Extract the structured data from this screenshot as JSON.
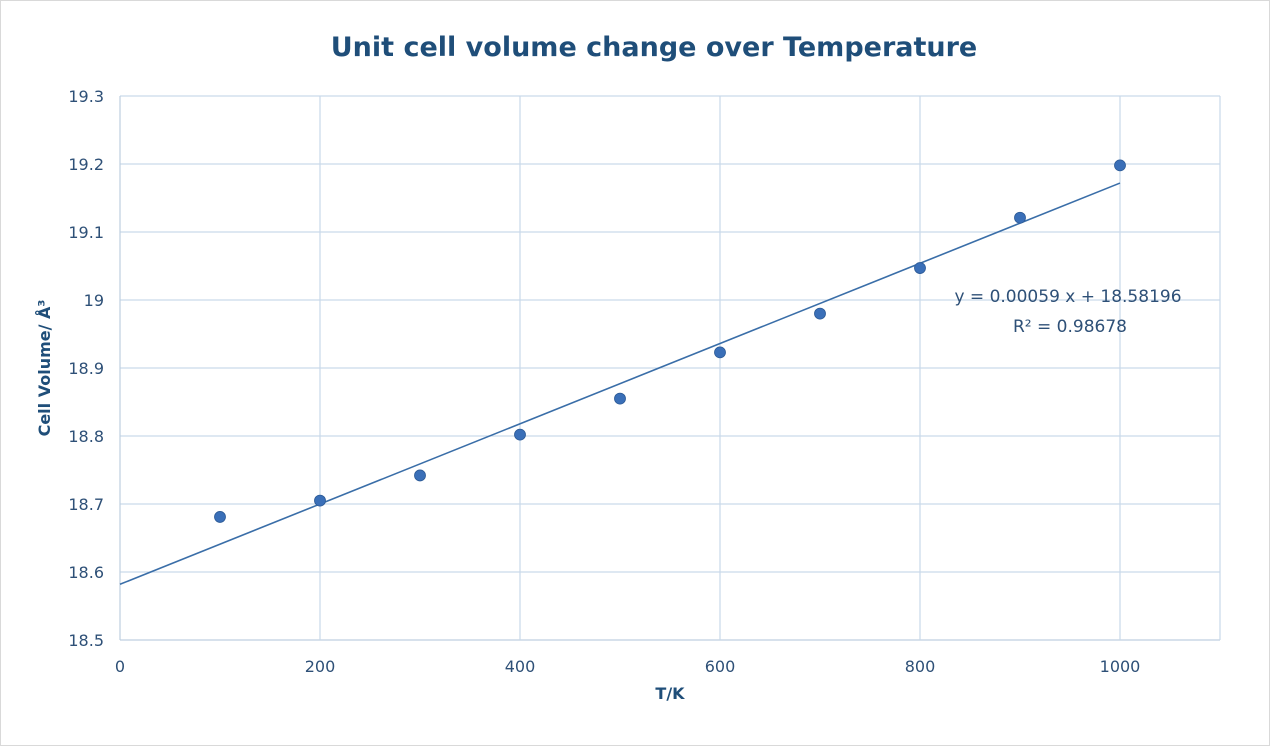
{
  "chart_data": {
    "type": "scatter",
    "title": "Unit cell volume change over Temperature",
    "xlabel": "T/K",
    "ylabel": "Cell Volume/ Å³",
    "xlim": [
      0,
      1100
    ],
    "ylim": [
      18.5,
      19.3
    ],
    "x_ticks": [
      0,
      200,
      400,
      600,
      800,
      1000
    ],
    "y_ticks": [
      18.5,
      18.6,
      18.7,
      18.8,
      18.9,
      19.0,
      19.1,
      19.2,
      19.3
    ],
    "x_tick_labels": [
      "0",
      "200",
      "400",
      "600",
      "800",
      "1000"
    ],
    "y_tick_labels": [
      "18.5",
      "18.6",
      "18.7",
      "18.8",
      "18.9",
      "19",
      "19.1",
      "19.2",
      "19.3"
    ],
    "grid": true,
    "series": [
      {
        "x": [
          100,
          200,
          300,
          400,
          500,
          600,
          700,
          800,
          900,
          1000
        ],
        "y": [
          18.681,
          18.705,
          18.742,
          18.802,
          18.855,
          18.923,
          18.98,
          19.047,
          19.121,
          19.198
        ],
        "color": "#3a6fb8"
      }
    ],
    "trendline": {
      "slope": 0.00059,
      "intercept": 18.58196,
      "x_range": [
        0,
        1000
      ],
      "color": "#3a6ea8",
      "equation": "y = 0.00059 x + 18.58196",
      "r_squared": "R² = 0.98678"
    }
  }
}
